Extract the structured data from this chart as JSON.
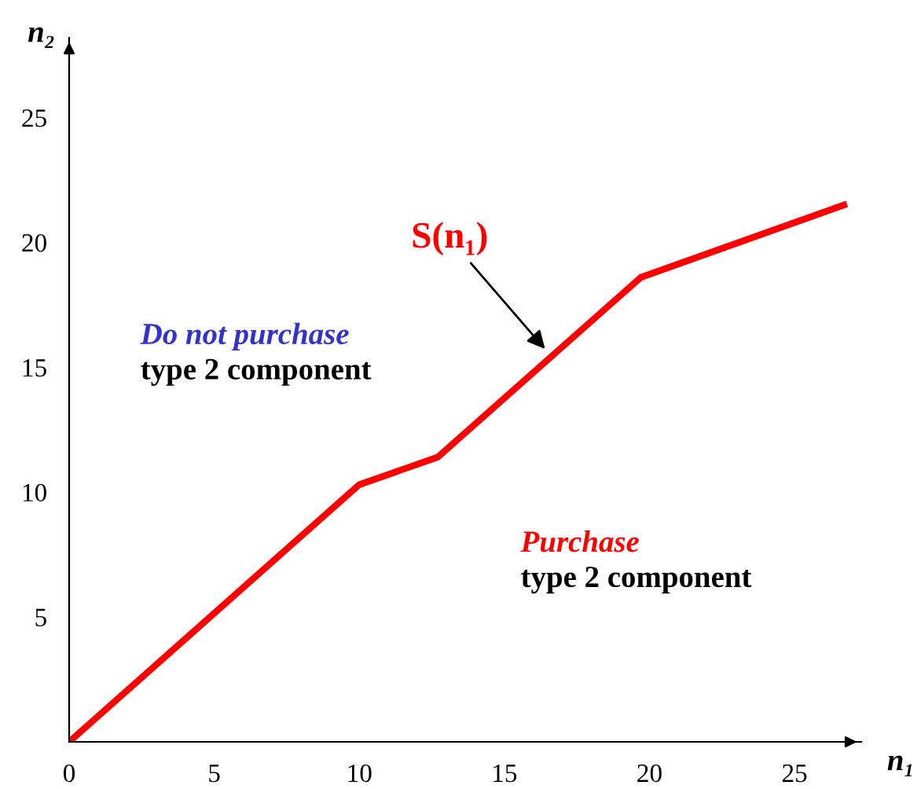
{
  "chart_data": {
    "type": "line",
    "xlabel": "n₁",
    "ylabel": "n₂",
    "x": [
      0,
      10.0,
      12.7,
      19.7,
      26.7
    ],
    "series": [
      {
        "color": "#ff0000",
        "values": [
          0,
          10.3,
          11.4,
          18.6,
          21.5
        ]
      }
    ],
    "xlim": [
      0,
      27.3
    ],
    "ylim": [
      0,
      28.2
    ],
    "xticks": [
      0,
      5,
      10,
      15,
      20,
      25
    ],
    "yticks": [
      5,
      10,
      15,
      20,
      25
    ],
    "annotations": [
      {
        "text": "S(n₁)",
        "x": 16.5,
        "y": 15.6
      },
      "Do not purchase",
      "type 2 component",
      "Purchase",
      "type 2 component"
    ],
    "grid": false,
    "marker": "none",
    "line_style": "solid"
  }
}
